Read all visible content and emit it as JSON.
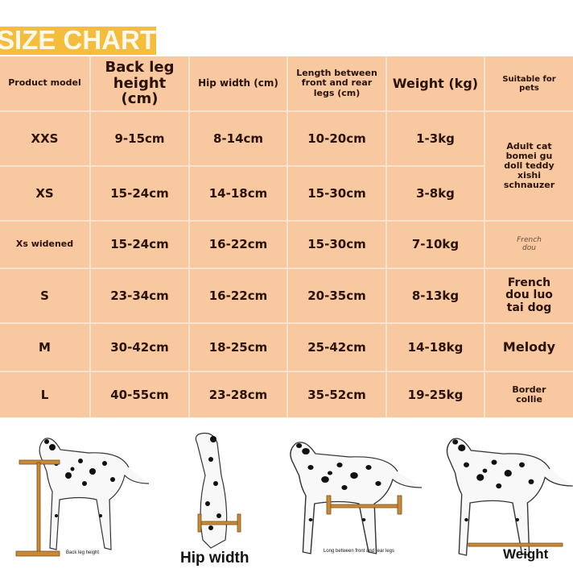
{
  "title": "SIZE CHART",
  "table": {
    "headers": [
      "Product model",
      "Back leg height (cm)",
      "Hip width (cm)",
      "Length between front and rear legs (cm)",
      "Weight (kg)",
      "Suitable for pets"
    ],
    "rows": [
      {
        "model": "XXS",
        "back_leg": "9-15cm",
        "hip": "8-14cm",
        "length": "10-20cm",
        "weight": "1-3kg"
      },
      {
        "model": "XS",
        "back_leg": "15-24cm",
        "hip": "14-18cm",
        "length": "15-30cm",
        "weight": "3-8kg"
      },
      {
        "model": "Xs widened",
        "back_leg": "15-24cm",
        "hip": "16-22cm",
        "length": "15-30cm",
        "weight": "7-10kg"
      },
      {
        "model": "S",
        "back_leg": "23-34cm",
        "hip": "16-22cm",
        "length": "20-35cm",
        "weight": "8-13kg"
      },
      {
        "model": "M",
        "back_leg": "30-42cm",
        "hip": "18-25cm",
        "length": "25-42cm",
        "weight": "14-18kg"
      },
      {
        "model": "L",
        "back_leg": "40-55cm",
        "hip": "23-28cm",
        "length": "35-52cm",
        "weight": "19-25kg"
      }
    ],
    "pets": [
      "Adult cat bomei gu doll teddy xishi schnauzer",
      "French dou",
      "French dou luo tai dog",
      "Melody",
      "Border collie"
    ]
  },
  "diagrams": {
    "back_leg_label": "Back leg height",
    "hip_label": "Hip width",
    "length_label": "Long between front and rear legs",
    "weight_label": "Weight"
  },
  "colors": {
    "banner": "#f5bd3c",
    "table_bg": "#f8c8a0",
    "measure_bar": "#c98a36"
  }
}
